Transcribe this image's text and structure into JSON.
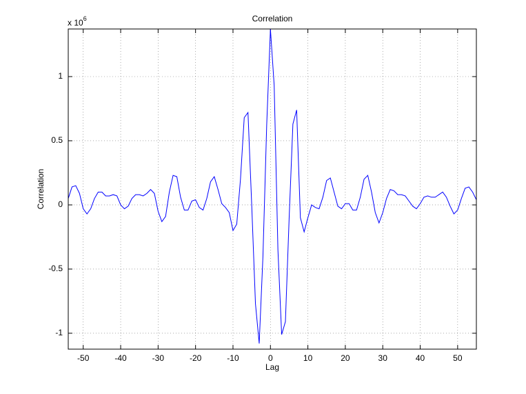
{
  "chart_data": {
    "type": "line",
    "title": "Correlation",
    "x_label": "Lag",
    "y_label": "Correlation",
    "y_multiplier": {
      "base": "x 10",
      "exponent": "6"
    },
    "x": [
      -54,
      -53,
      -52,
      -51,
      -50,
      -49,
      -48,
      -47,
      -46,
      -45,
      -44,
      -43,
      -42,
      -41,
      -40,
      -39,
      -38,
      -37,
      -36,
      -35,
      -34,
      -33,
      -32,
      -31,
      -30,
      -29,
      -28,
      -27,
      -26,
      -25,
      -24,
      -23,
      -22,
      -21,
      -20,
      -19,
      -18,
      -17,
      -16,
      -15,
      -14,
      -13,
      -12,
      -11,
      -10,
      -9,
      -8,
      -7,
      -6,
      -5,
      -4,
      -3,
      -2,
      -1,
      0,
      1,
      2,
      3,
      4,
      5,
      6,
      7,
      8,
      9,
      10,
      11,
      12,
      13,
      14,
      15,
      16,
      17,
      18,
      19,
      20,
      21,
      22,
      23,
      24,
      25,
      26,
      27,
      28,
      29,
      30,
      31,
      32,
      33,
      34,
      35,
      36,
      37,
      38,
      39,
      40,
      41,
      42,
      43,
      44,
      45,
      46,
      47,
      48,
      49,
      50,
      51,
      52,
      53,
      54,
      55
    ],
    "series": [
      {
        "name": "Correlation",
        "color": "#0000ff",
        "values": [
          0.05,
          0.14,
          0.15,
          0.09,
          -0.03,
          -0.07,
          -0.03,
          0.05,
          0.1,
          0.1,
          0.07,
          0.07,
          0.08,
          0.07,
          0.0,
          -0.03,
          -0.01,
          0.05,
          0.08,
          0.08,
          0.07,
          0.09,
          0.12,
          0.09,
          -0.05,
          -0.13,
          -0.09,
          0.1,
          0.23,
          0.22,
          0.06,
          -0.04,
          -0.04,
          0.03,
          0.04,
          -0.02,
          -0.04,
          0.05,
          0.18,
          0.22,
          0.12,
          0.01,
          -0.02,
          -0.06,
          -0.2,
          -0.15,
          0.2,
          0.68,
          0.72,
          0.0,
          -0.77,
          -1.08,
          -0.4,
          0.62,
          1.37,
          0.93,
          -0.35,
          -1.01,
          -0.91,
          -0.1,
          0.63,
          0.74,
          -0.1,
          -0.21,
          -0.1,
          0.0,
          -0.02,
          -0.03,
          0.06,
          0.19,
          0.21,
          0.1,
          -0.01,
          -0.03,
          0.01,
          0.01,
          -0.04,
          -0.04,
          0.06,
          0.2,
          0.23,
          0.1,
          -0.06,
          -0.14,
          -0.06,
          0.05,
          0.12,
          0.11,
          0.08,
          0.08,
          0.07,
          0.03,
          -0.01,
          -0.03,
          0.01,
          0.06,
          0.07,
          0.06,
          0.06,
          0.08,
          0.1,
          0.06,
          -0.01,
          -0.07,
          -0.04,
          0.05,
          0.13,
          0.14,
          0.1,
          0.04
        ]
      }
    ],
    "xlim": [
      -54,
      55
    ],
    "ylim": [
      -1.124,
      1.371
    ],
    "xticks": [
      -50,
      -40,
      -30,
      -20,
      -10,
      0,
      10,
      20,
      30,
      40,
      50
    ],
    "yticks": [
      -1,
      -0.5,
      0,
      0.5,
      1
    ],
    "grid": true
  }
}
